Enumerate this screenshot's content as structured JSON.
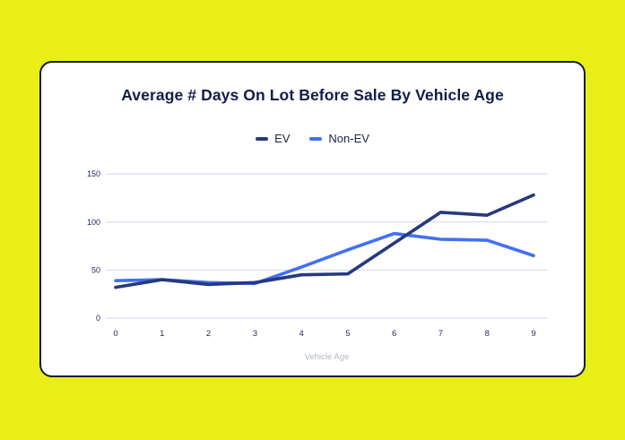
{
  "page": {
    "background_color": "#e9ee16"
  },
  "card": {
    "title": "Average # Days On Lot Before Sale By Vehicle Age",
    "background_color": "#ffffff",
    "border_color": "#131c45"
  },
  "legend": {
    "items": [
      {
        "label": "EV",
        "color": "#25397f"
      },
      {
        "label": "Non-EV",
        "color": "#4170f4"
      }
    ]
  },
  "chart_data": {
    "type": "line",
    "title": "Average # Days On Lot Before Sale By Vehicle Age",
    "xlabel": "Vehicle Age",
    "ylabel": "",
    "x": [
      0,
      1,
      2,
      3,
      4,
      5,
      6,
      7,
      8,
      9
    ],
    "x_tick_labels": [
      "0",
      "1",
      "2",
      "3",
      "4",
      "5",
      "6",
      "7",
      "8",
      "9"
    ],
    "yticks": [
      0,
      50,
      100,
      150
    ],
    "ylim": [
      0,
      150
    ],
    "grid": "horizontal",
    "legend_position": "top",
    "series": [
      {
        "name": "EV",
        "color": "#25397f",
        "values": [
          32,
          40,
          35,
          37,
          45,
          46,
          78,
          110,
          107,
          128
        ]
      },
      {
        "name": "Non-EV",
        "color": "#4170f4",
        "values": [
          39,
          40,
          37,
          36,
          53,
          71,
          88,
          82,
          81,
          65
        ]
      }
    ]
  },
  "colors": {
    "gridline": "#d9dde9",
    "tick_label": "#1e2a55",
    "axis_label": "#b3b9c4",
    "title": "#131d4a",
    "legend_text": "#1a2547"
  }
}
